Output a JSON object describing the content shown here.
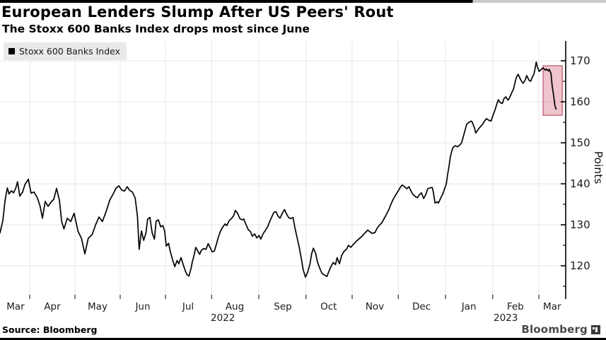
{
  "page": {
    "title": "European Lenders Slump After US Peers' Rout",
    "subtitle": "The Stoxx 600 Banks Index drops most since June",
    "source": "Source: Bloomberg",
    "watermark": "Bloomberg"
  },
  "legend": {
    "items": [
      {
        "label": "Stoxx 600 Banks Index",
        "marker_color": "#000000"
      }
    ]
  },
  "colors": {
    "line": "#000000",
    "grid": "#e4e4e7",
    "axis": "#000000",
    "tick_label": "#1a1a1a",
    "highlight_fill": "#db7289",
    "highlight_border": "#c05c72",
    "legend_bg": "#e9e9e9",
    "top_bar": "#000000",
    "bottom_bar": "#000000"
  },
  "chart_data": {
    "type": "line",
    "title": "European Lenders Slump After US Peers' Rout",
    "subtitle": "The Stoxx 600 Banks Index drops most since June",
    "x_axis": {
      "description": "Time, March 2022 to March 2023",
      "months": [
        {
          "label": "Mar",
          "pct": 2.75
        },
        {
          "label": "Apr",
          "pct": 9.25
        },
        {
          "label": "May",
          "pct": 17.25
        },
        {
          "label": "Jun",
          "pct": 25.25
        },
        {
          "label": "Jul",
          "pct": 33.25
        },
        {
          "label": "Aug",
          "pct": 41.5
        },
        {
          "label": "Sep",
          "pct": 50.0
        },
        {
          "label": "Oct",
          "pct": 58.1
        },
        {
          "label": "Nov",
          "pct": 66.25
        },
        {
          "label": "Dec",
          "pct": 74.5
        },
        {
          "label": "Jan",
          "pct": 82.9
        },
        {
          "label": "Feb",
          "pct": 91.1
        },
        {
          "label": "Mar",
          "pct": 97.6
        }
      ],
      "years": [
        {
          "label": "2022",
          "pct": 39.4
        },
        {
          "label": "2023",
          "pct": 89.4
        }
      ],
      "gridline_pct": [
        5.25,
        13.25,
        21.25,
        29.25,
        37.4,
        45.75,
        54.1,
        62.25,
        70.4,
        78.75,
        87.1,
        95.25
      ]
    },
    "y_axis": {
      "label": "Points",
      "ticks": [
        120,
        130,
        140,
        150,
        160,
        170
      ],
      "minor_ticks": [
        115,
        125,
        135,
        145,
        155,
        165
      ],
      "visible_range": [
        112,
        175
      ],
      "side": "right",
      "grid": true
    },
    "highlight_box": {
      "name": "recent-slump-highlight",
      "x_pct": [
        96.0,
        99.4
      ],
      "value_range": [
        156.7,
        168.8
      ]
    },
    "series": [
      {
        "name": "Stoxx 600 Banks Index",
        "color": "#000000",
        "points": [
          [
            0,
            128
          ],
          [
            0.5,
            131
          ],
          [
            0.9,
            136
          ],
          [
            1.3,
            139
          ],
          [
            1.6,
            137.5
          ],
          [
            2,
            138.3
          ],
          [
            2.4,
            137.8
          ],
          [
            2.8,
            139
          ],
          [
            3.1,
            140.5
          ],
          [
            3.5,
            137
          ],
          [
            4,
            138
          ],
          [
            4.4,
            139.8
          ],
          [
            5,
            141.1
          ],
          [
            5.5,
            137.7
          ],
          [
            6,
            138
          ],
          [
            6.6,
            136.6
          ],
          [
            7.1,
            134.5
          ],
          [
            7.5,
            131.6
          ],
          [
            8,
            135.7
          ],
          [
            8.5,
            134.5
          ],
          [
            9,
            135.5
          ],
          [
            9.5,
            136.2
          ],
          [
            10,
            138.9
          ],
          [
            10.5,
            136
          ],
          [
            10.9,
            130.8
          ],
          [
            11.3,
            129
          ],
          [
            11.9,
            131.6
          ],
          [
            12.5,
            130.8
          ],
          [
            13.1,
            132.8
          ],
          [
            13.8,
            128.4
          ],
          [
            14.4,
            126.7
          ],
          [
            15,
            122.9
          ],
          [
            15.6,
            126.7
          ],
          [
            16.3,
            127.6
          ],
          [
            16.9,
            130
          ],
          [
            17.5,
            131.9
          ],
          [
            18.1,
            130.8
          ],
          [
            18.8,
            133.4
          ],
          [
            19.4,
            136
          ],
          [
            20,
            137.5
          ],
          [
            20.5,
            138.9
          ],
          [
            21,
            139.5
          ],
          [
            21.5,
            138.5
          ],
          [
            22,
            138.2
          ],
          [
            22.5,
            139.3
          ],
          [
            22.9,
            138.4
          ],
          [
            23.4,
            138
          ],
          [
            23.9,
            136.5
          ],
          [
            24.3,
            132
          ],
          [
            24.6,
            124
          ],
          [
            25,
            128.5
          ],
          [
            25.4,
            126.2
          ],
          [
            25.8,
            128
          ],
          [
            26.1,
            131.4
          ],
          [
            26.5,
            131.8
          ],
          [
            26.9,
            128
          ],
          [
            27.3,
            126.5
          ],
          [
            27.6,
            130.9
          ],
          [
            28,
            131.2
          ],
          [
            28.4,
            129.5
          ],
          [
            28.8,
            129.8
          ],
          [
            29.1,
            128.5
          ],
          [
            29.4,
            124.8
          ],
          [
            29.8,
            125.5
          ],
          [
            30.1,
            123.5
          ],
          [
            30.5,
            121.5
          ],
          [
            30.9,
            119.8
          ],
          [
            31.3,
            121.3
          ],
          [
            31.6,
            120.5
          ],
          [
            32,
            122
          ],
          [
            32.4,
            120.2
          ],
          [
            32.8,
            118.6
          ],
          [
            33.1,
            117.8
          ],
          [
            33.4,
            117.5
          ],
          [
            33.8,
            119.5
          ],
          [
            34,
            121
          ],
          [
            34.3,
            122.5
          ],
          [
            34.6,
            124.5
          ],
          [
            35,
            123.5
          ],
          [
            35.3,
            122.8
          ],
          [
            35.6,
            123.8
          ],
          [
            36,
            124.2
          ],
          [
            36.4,
            124
          ],
          [
            36.8,
            125.4
          ],
          [
            37.1,
            124.6
          ],
          [
            37.5,
            123.4
          ],
          [
            37.9,
            123.6
          ],
          [
            38.3,
            125.5
          ],
          [
            38.6,
            127
          ],
          [
            39,
            128.5
          ],
          [
            39.4,
            129.5
          ],
          [
            39.8,
            130.2
          ],
          [
            40.1,
            129.8
          ],
          [
            40.5,
            131
          ],
          [
            40.9,
            131.5
          ],
          [
            41.3,
            132.2
          ],
          [
            41.6,
            133.5
          ],
          [
            42,
            132.8
          ],
          [
            42.4,
            131.5
          ],
          [
            42.8,
            131.2
          ],
          [
            43.1,
            131.4
          ],
          [
            43.5,
            130
          ],
          [
            43.9,
            128.8
          ],
          [
            44.3,
            128.3
          ],
          [
            44.6,
            127.2
          ],
          [
            45,
            127.8
          ],
          [
            45.4,
            126.8
          ],
          [
            45.8,
            127.4
          ],
          [
            46.1,
            126.5
          ],
          [
            46.5,
            127.8
          ],
          [
            46.9,
            128.6
          ],
          [
            47.3,
            129.5
          ],
          [
            47.6,
            130.5
          ],
          [
            48,
            131.8
          ],
          [
            48.4,
            133
          ],
          [
            48.8,
            133.2
          ],
          [
            49.1,
            132.2
          ],
          [
            49.5,
            131.6
          ],
          [
            49.9,
            132.8
          ],
          [
            50.3,
            133.7
          ],
          [
            50.6,
            132.8
          ],
          [
            51,
            131.8
          ],
          [
            51.4,
            131.5
          ],
          [
            51.8,
            131.8
          ],
          [
            52.1,
            129.5
          ],
          [
            52.5,
            127
          ],
          [
            52.9,
            124.5
          ],
          [
            53.3,
            121.5
          ],
          [
            53.6,
            119
          ],
          [
            54,
            117.2
          ],
          [
            54.4,
            118.5
          ],
          [
            54.8,
            120.5
          ],
          [
            55.1,
            123
          ],
          [
            55.4,
            124.3
          ],
          [
            55.8,
            123
          ],
          [
            56.1,
            121
          ],
          [
            56.5,
            119.5
          ],
          [
            56.9,
            118.2
          ],
          [
            57.3,
            117.8
          ],
          [
            57.8,
            117.4
          ],
          [
            58.1,
            118.5
          ],
          [
            58.5,
            119.8
          ],
          [
            58.9,
            120.8
          ],
          [
            59.3,
            120.3
          ],
          [
            59.6,
            122
          ],
          [
            60,
            120.5
          ],
          [
            60.4,
            122.5
          ],
          [
            60.8,
            123.5
          ],
          [
            61.3,
            124.1
          ],
          [
            61.6,
            125
          ],
          [
            62,
            124.5
          ],
          [
            62.5,
            125.3
          ],
          [
            63,
            126
          ],
          [
            63.5,
            126.6
          ],
          [
            64,
            127.2
          ],
          [
            64.5,
            128
          ],
          [
            65,
            128.7
          ],
          [
            65.4,
            128.3
          ],
          [
            65.8,
            127.9
          ],
          [
            66.3,
            128.1
          ],
          [
            66.6,
            129
          ],
          [
            67,
            129.8
          ],
          [
            67.5,
            130.5
          ],
          [
            67.9,
            131.5
          ],
          [
            68.3,
            132.5
          ],
          [
            68.8,
            133.9
          ],
          [
            69.1,
            135
          ],
          [
            69.5,
            136.2
          ],
          [
            70,
            137.4
          ],
          [
            70.4,
            138.3
          ],
          [
            70.8,
            139.2
          ],
          [
            71.1,
            139.7
          ],
          [
            71.5,
            139.3
          ],
          [
            71.9,
            138.8
          ],
          [
            72.3,
            139.3
          ],
          [
            72.6,
            138.4
          ],
          [
            73,
            137.4
          ],
          [
            73.4,
            136.9
          ],
          [
            73.8,
            136.6
          ],
          [
            74.1,
            137.3
          ],
          [
            74.5,
            137.8
          ],
          [
            74.9,
            136.4
          ],
          [
            75.3,
            137.5
          ],
          [
            75.6,
            138.8
          ],
          [
            76,
            139
          ],
          [
            76.4,
            139.1
          ],
          [
            76.6,
            138
          ],
          [
            76.9,
            135.3
          ],
          [
            77.3,
            135.6
          ],
          [
            77.5,
            135.3
          ],
          [
            77.9,
            136.5
          ],
          [
            78.3,
            137.6
          ],
          [
            78.6,
            138.8
          ],
          [
            78.9,
            140
          ],
          [
            79.1,
            142
          ],
          [
            79.4,
            144.5
          ],
          [
            79.6,
            146.5
          ],
          [
            79.9,
            148.2
          ],
          [
            80.1,
            148.9
          ],
          [
            80.5,
            149.3
          ],
          [
            80.9,
            149
          ],
          [
            81.3,
            149.5
          ],
          [
            81.6,
            150
          ],
          [
            82,
            152
          ],
          [
            82.3,
            153.5
          ],
          [
            82.5,
            154.5
          ],
          [
            82.9,
            155
          ],
          [
            83.3,
            155.3
          ],
          [
            83.5,
            155
          ],
          [
            83.9,
            153.5
          ],
          [
            84.1,
            152.4
          ],
          [
            84.5,
            153.2
          ],
          [
            84.9,
            153.9
          ],
          [
            85.3,
            154.5
          ],
          [
            85.6,
            155.2
          ],
          [
            86,
            155.9
          ],
          [
            86.4,
            155.5
          ],
          [
            86.8,
            155.3
          ],
          [
            87.1,
            156.5
          ],
          [
            87.5,
            158
          ],
          [
            87.9,
            159.8
          ],
          [
            88.1,
            160.5
          ],
          [
            88.4,
            159.8
          ],
          [
            88.8,
            159.6
          ],
          [
            89.1,
            160.8
          ],
          [
            89.4,
            161.2
          ],
          [
            89.8,
            160.4
          ],
          [
            90,
            160.8
          ],
          [
            90.4,
            162
          ],
          [
            90.8,
            163.2
          ],
          [
            91,
            164.5
          ],
          [
            91.3,
            166
          ],
          [
            91.6,
            166.7
          ],
          [
            92,
            165.5
          ],
          [
            92.3,
            164.8
          ],
          [
            92.5,
            164.5
          ],
          [
            92.9,
            165.5
          ],
          [
            93.1,
            166.4
          ],
          [
            93.5,
            165.3
          ],
          [
            93.8,
            165
          ],
          [
            94.1,
            166
          ],
          [
            94.4,
            166.8
          ],
          [
            94.8,
            169.7
          ],
          [
            95,
            168.5
          ],
          [
            95.3,
            167.4
          ],
          [
            95.6,
            167.8
          ],
          [
            96,
            168.3
          ],
          [
            96.4,
            167.7
          ],
          [
            96.6,
            168
          ],
          [
            96.9,
            167.5
          ],
          [
            97.1,
            167.9
          ],
          [
            97.4,
            166.9
          ],
          [
            97.6,
            164
          ],
          [
            97.9,
            161.2
          ],
          [
            98.1,
            159
          ],
          [
            98.3,
            158.2
          ]
        ]
      }
    ]
  }
}
